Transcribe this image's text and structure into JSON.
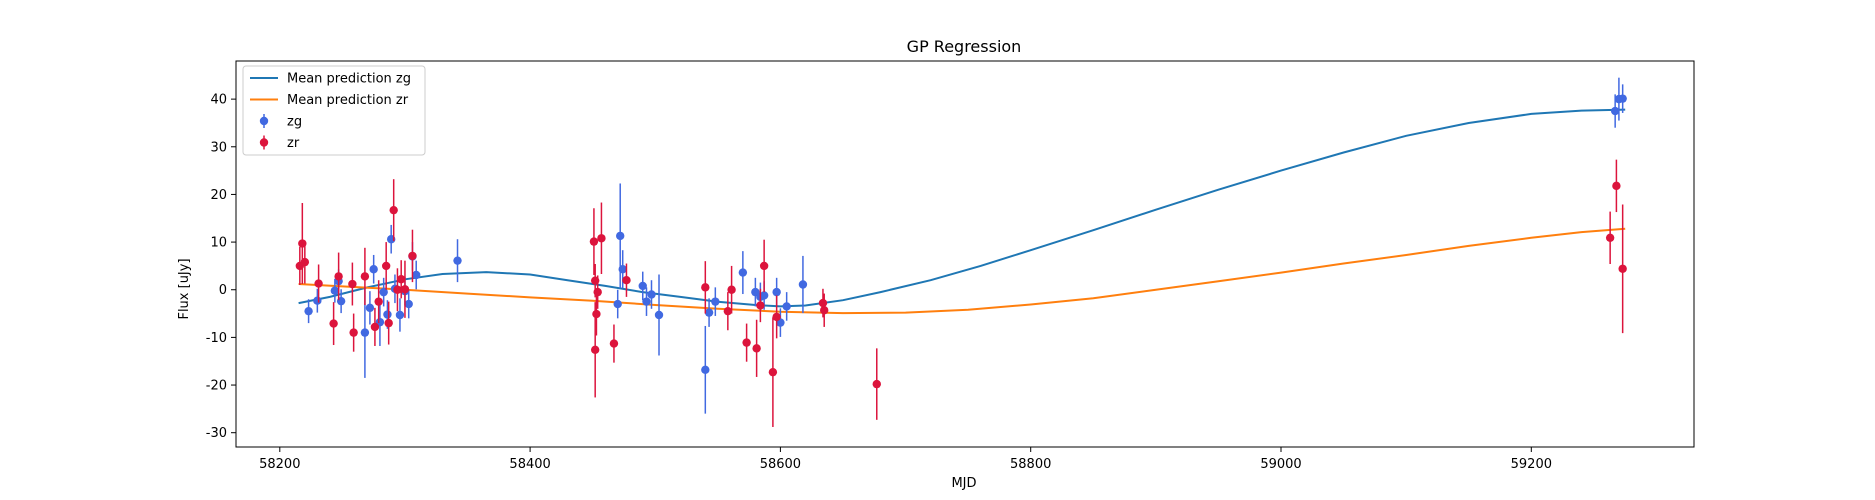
{
  "chart_data": {
    "type": "scatter",
    "title": "GP Regression",
    "xlabel": "MJD",
    "ylabel": "Flux [uJy]",
    "xlim": [
      58165,
      59330
    ],
    "ylim": [
      -33,
      48
    ],
    "xticks": [
      58200,
      58400,
      58600,
      58800,
      59000,
      59200
    ],
    "yticks": [
      -30,
      -20,
      -10,
      0,
      10,
      20,
      30,
      40
    ],
    "grid": false,
    "legend_position": "upper-left",
    "colors": {
      "mean_zg": "#1f77b4",
      "mean_zr": "#ff7f0e",
      "zg": "#4169e1",
      "zr": "#dc143c"
    },
    "legend": [
      {
        "label": "Mean prediction zg",
        "kind": "line",
        "color": "#1f77b4"
      },
      {
        "label": "Mean prediction zr",
        "kind": "line",
        "color": "#ff7f0e"
      },
      {
        "label": "zg",
        "kind": "errorbar",
        "color": "#4169e1"
      },
      {
        "label": "zr",
        "kind": "errorbar",
        "color": "#dc143c"
      }
    ],
    "lines": [
      {
        "name": "Mean prediction zg",
        "color": "#1f77b4",
        "x": [
          58215,
          58240,
          58270,
          58300,
          58330,
          58365,
          58400,
          58430,
          58460,
          58490,
          58520,
          58550,
          58580,
          58600,
          58620,
          58650,
          58680,
          58720,
          58760,
          58800,
          58850,
          58900,
          58950,
          59000,
          59050,
          59100,
          59150,
          59200,
          59240,
          59275
        ],
        "y": [
          -2.8,
          -1.5,
          0.5,
          2.2,
          3.3,
          3.7,
          3.2,
          2.0,
          0.8,
          -0.5,
          -1.5,
          -2.5,
          -3.2,
          -3.5,
          -3.3,
          -2.2,
          -0.5,
          2.0,
          5.0,
          8.3,
          12.5,
          16.8,
          21.0,
          25.0,
          28.8,
          32.3,
          35.0,
          36.9,
          37.6,
          37.8
        ]
      },
      {
        "name": "Mean prediction zr",
        "color": "#ff7f0e",
        "x": [
          58215,
          58250,
          58300,
          58350,
          58400,
          58450,
          58500,
          58550,
          58600,
          58650,
          58700,
          58750,
          58800,
          58850,
          58900,
          58950,
          59000,
          59050,
          59100,
          59150,
          59200,
          59240,
          59275
        ],
        "y": [
          1.2,
          0.7,
          0.0,
          -0.8,
          -1.6,
          -2.3,
          -3.2,
          -4.0,
          -4.6,
          -4.9,
          -4.8,
          -4.2,
          -3.1,
          -1.8,
          0.0,
          1.8,
          3.6,
          5.5,
          7.3,
          9.2,
          10.9,
          12.1,
          12.8
        ]
      }
    ],
    "series": [
      {
        "name": "zg",
        "color": "#4169e1",
        "points": [
          {
            "x": 58223,
            "y": -4.5,
            "err": 2.5
          },
          {
            "x": 58230,
            "y": -2.3,
            "err": 2.5
          },
          {
            "x": 58244,
            "y": -0.2,
            "err": 2.5
          },
          {
            "x": 58247,
            "y": 1.8,
            "err": 2.5
          },
          {
            "x": 58249,
            "y": -2.4,
            "err": 2.5
          },
          {
            "x": 58268,
            "y": -9.0,
            "err": 9.5
          },
          {
            "x": 58272,
            "y": -3.8,
            "err": 3.5
          },
          {
            "x": 58275,
            "y": 4.3,
            "err": 3.0
          },
          {
            "x": 58280,
            "y": -6.8,
            "err": 5.0
          },
          {
            "x": 58283,
            "y": -0.5,
            "err": 3.0
          },
          {
            "x": 58286,
            "y": -5.2,
            "err": 3.0
          },
          {
            "x": 58289,
            "y": 10.6,
            "err": 3.0
          },
          {
            "x": 58292,
            "y": 0.2,
            "err": 3.0
          },
          {
            "x": 58296,
            "y": -5.3,
            "err": 3.5
          },
          {
            "x": 58300,
            "y": -0.3,
            "err": 3.0
          },
          {
            "x": 58303,
            "y": -3.0,
            "err": 3.0
          },
          {
            "x": 58306,
            "y": 7.0,
            "err": 3.0
          },
          {
            "x": 58309,
            "y": 3.1,
            "err": 3.0
          },
          {
            "x": 58342,
            "y": 6.1,
            "err": 4.5
          },
          {
            "x": 58470,
            "y": -3.0,
            "err": 3.0
          },
          {
            "x": 58472,
            "y": 11.3,
            "err": 11.0
          },
          {
            "x": 58474,
            "y": 4.3,
            "err": 4.0
          },
          {
            "x": 58490,
            "y": 0.8,
            "err": 3.0
          },
          {
            "x": 58493,
            "y": -2.5,
            "err": 3.0
          },
          {
            "x": 58497,
            "y": -1.0,
            "err": 3.0
          },
          {
            "x": 58503,
            "y": -5.3,
            "err": 8.5
          },
          {
            "x": 58540,
            "y": -16.8,
            "err": 9.2
          },
          {
            "x": 58543,
            "y": -4.8,
            "err": 3.0
          },
          {
            "x": 58548,
            "y": -2.5,
            "err": 3.0
          },
          {
            "x": 58570,
            "y": 3.6,
            "err": 4.5
          },
          {
            "x": 58580,
            "y": -0.5,
            "err": 3.0
          },
          {
            "x": 58584,
            "y": -1.5,
            "err": 3.0
          },
          {
            "x": 58587,
            "y": -1.2,
            "err": 3.0
          },
          {
            "x": 58597,
            "y": -0.5,
            "err": 3.0
          },
          {
            "x": 58600,
            "y": -6.9,
            "err": 3.0
          },
          {
            "x": 58605,
            "y": -3.5,
            "err": 3.0
          },
          {
            "x": 58618,
            "y": 1.1,
            "err": 6.0
          },
          {
            "x": 59267,
            "y": 37.5,
            "err": 3.5
          },
          {
            "x": 59270,
            "y": 40.0,
            "err": 4.5
          },
          {
            "x": 59273,
            "y": 40.1,
            "err": 3.0
          }
        ]
      },
      {
        "name": "zr",
        "color": "#dc143c",
        "points": [
          {
            "x": 58216,
            "y": 5.0,
            "err": 4.0
          },
          {
            "x": 58218,
            "y": 9.7,
            "err": 8.5
          },
          {
            "x": 58220,
            "y": 5.8,
            "err": 4.5
          },
          {
            "x": 58231,
            "y": 1.3,
            "err": 4.0
          },
          {
            "x": 58243,
            "y": -7.1,
            "err": 4.5
          },
          {
            "x": 58247,
            "y": 2.8,
            "err": 5.0
          },
          {
            "x": 58258,
            "y": 1.2,
            "err": 4.5
          },
          {
            "x": 58259,
            "y": -9.0,
            "err": 4.0
          },
          {
            "x": 58268,
            "y": 2.8,
            "err": 6.0
          },
          {
            "x": 58276,
            "y": -7.8,
            "err": 4.0
          },
          {
            "x": 58279,
            "y": -2.5,
            "err": 4.5
          },
          {
            "x": 58285,
            "y": 5.0,
            "err": 5.0
          },
          {
            "x": 58287,
            "y": -7.0,
            "err": 4.5
          },
          {
            "x": 58291,
            "y": 16.7,
            "err": 6.5
          },
          {
            "x": 58294,
            "y": 0.0,
            "err": 4.5
          },
          {
            "x": 58297,
            "y": 2.2,
            "err": 4.0
          },
          {
            "x": 58300,
            "y": 0.1,
            "err": 6.0
          },
          {
            "x": 58306,
            "y": 7.1,
            "err": 5.5
          },
          {
            "x": 58451,
            "y": 10.1,
            "err": 7.0
          },
          {
            "x": 58452,
            "y": 1.9,
            "err": 3.5
          },
          {
            "x": 58452,
            "y": -12.6,
            "err": 10.0
          },
          {
            "x": 58453,
            "y": -5.1,
            "err": 4.5
          },
          {
            "x": 58454,
            "y": -0.5,
            "err": 3.5
          },
          {
            "x": 58457,
            "y": 10.8,
            "err": 7.5
          },
          {
            "x": 58467,
            "y": -11.3,
            "err": 4.0
          },
          {
            "x": 58477,
            "y": 2.0,
            "err": 3.5
          },
          {
            "x": 58540,
            "y": 0.5,
            "err": 5.5
          },
          {
            "x": 58558,
            "y": -4.5,
            "err": 4.0
          },
          {
            "x": 58561,
            "y": 0.0,
            "err": 5.0
          },
          {
            "x": 58573,
            "y": -11.1,
            "err": 4.0
          },
          {
            "x": 58581,
            "y": -12.3,
            "err": 6.0
          },
          {
            "x": 58584,
            "y": -3.3,
            "err": 3.5
          },
          {
            "x": 58587,
            "y": 5.0,
            "err": 5.5
          },
          {
            "x": 58594,
            "y": -17.3,
            "err": 11.5
          },
          {
            "x": 58597,
            "y": -5.7,
            "err": 4.5
          },
          {
            "x": 58634,
            "y": -2.8,
            "err": 3.0
          },
          {
            "x": 58635,
            "y": -4.3,
            "err": 3.5
          },
          {
            "x": 58677,
            "y": -19.8,
            "err": 7.5
          },
          {
            "x": 59263,
            "y": 10.9,
            "err": 5.5
          },
          {
            "x": 59268,
            "y": 21.8,
            "err": 5.5
          },
          {
            "x": 59273,
            "y": 4.4,
            "err": 13.5
          }
        ]
      }
    ]
  }
}
